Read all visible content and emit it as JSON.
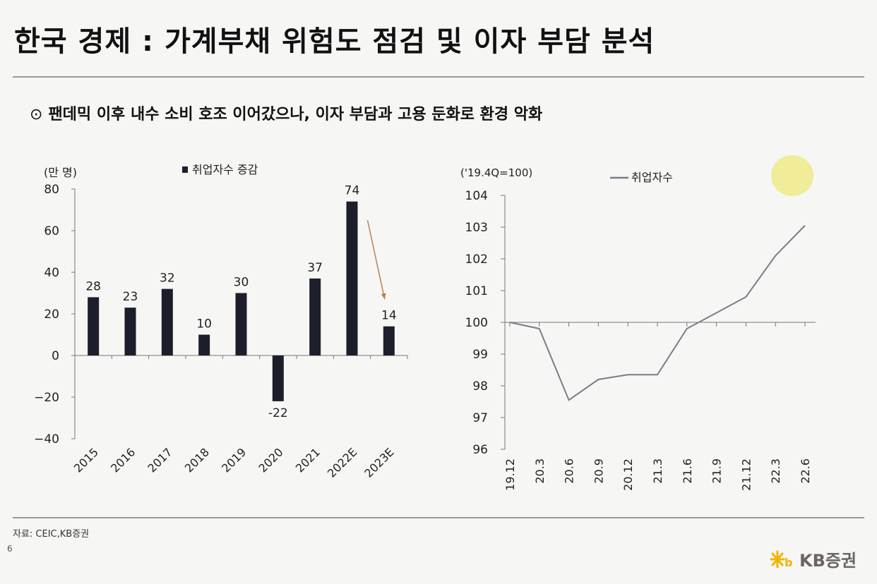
{
  "header": {
    "title": "한국 경제 : 가계부채 위험도 점검 및 이자 부담 분석",
    "subtitle_mark": "⊙",
    "subtitle": "팬데믹 이후 내수 소비 호조 이어갔으나, 이자 부담과 고용 둔화로 환경 악화"
  },
  "footer": {
    "source": "자료: CEIC,KB증권",
    "page_number": "6",
    "logo_text": "KB증권",
    "logo_color": "#f0b400"
  },
  "chart_data": [
    {
      "type": "bar",
      "unit_label": "(만 명)",
      "legend": [
        "취업자수 증감"
      ],
      "categories": [
        "2015",
        "2016",
        "2017",
        "2018",
        "2019",
        "2020",
        "2021",
        "2022E",
        "2023E"
      ],
      "series": [
        {
          "name": "취업자수 증감",
          "values": [
            28,
            23,
            32,
            10,
            30,
            -22,
            37,
            74,
            14
          ]
        }
      ],
      "data_labels": [
        "28",
        "23",
        "32",
        "10",
        "30",
        "-22",
        "37",
        "74",
        "14"
      ],
      "ylim": [
        -40,
        80
      ],
      "yticks": [
        80,
        60,
        40,
        20,
        0,
        -20,
        -40
      ],
      "ytick_labels": [
        "80",
        "60",
        "40",
        "20",
        "0",
        "−20",
        "−40"
      ],
      "annotation": "arrow from 2022E to 2023E",
      "bar_color": "#1c1f2b",
      "arrow_color": "#b98350"
    },
    {
      "type": "line",
      "unit_label": "('19.4Q=100)",
      "legend": [
        "취업자수"
      ],
      "x": [
        "19.12",
        "20.3",
        "20.6",
        "20.9",
        "20.12",
        "21.3",
        "21.6",
        "21.9",
        "21.12",
        "22.3",
        "22.6"
      ],
      "series": [
        {
          "name": "취업자수",
          "values": [
            100.0,
            99.8,
            97.55,
            98.2,
            98.35,
            98.35,
            99.8,
            100.3,
            100.8,
            102.1,
            103.05
          ]
        }
      ],
      "ylim": [
        96,
        104
      ],
      "yticks": [
        104,
        103,
        102,
        101,
        100,
        99,
        98,
        97,
        96
      ],
      "ytick_labels": [
        "104",
        "103",
        "102",
        "101",
        "100",
        "99",
        "98",
        "97",
        "96"
      ],
      "reference_line": 100,
      "line_color": "#7a7d88"
    }
  ]
}
